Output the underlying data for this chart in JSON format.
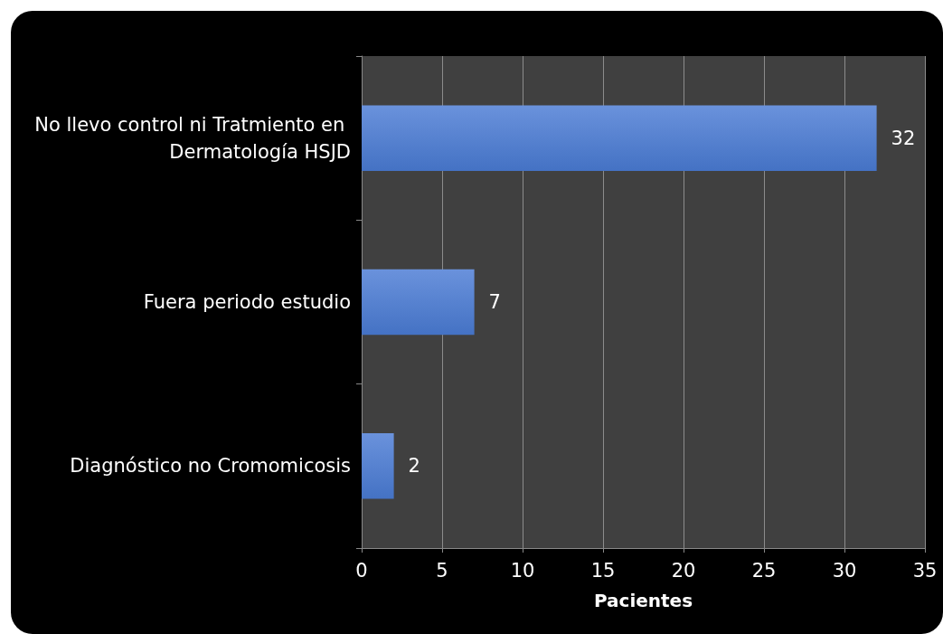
{
  "chart_data": {
    "type": "bar",
    "orientation": "horizontal",
    "xlabel": "Pacientes",
    "categories": [
      "No llevo control ni Tratmiento en Dermatología HSJD",
      "Fuera periodo estudio",
      "Diagnóstico no Cromomicosis"
    ],
    "values": [
      32,
      7,
      2
    ],
    "color": "#4472c4",
    "xlim": [
      0,
      35
    ],
    "xticks": [
      0,
      5,
      10,
      15,
      20,
      25,
      30,
      35
    ],
    "grid": "x",
    "data_labels": true
  }
}
